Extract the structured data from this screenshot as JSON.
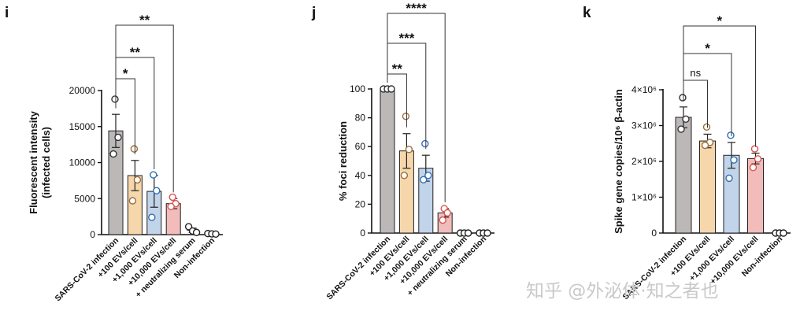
{
  "chart_data": [
    {
      "panel": "i",
      "type": "bar",
      "ylabel": [
        "Fluorescent intensity",
        "(infected cells)"
      ],
      "ylim": [
        0,
        20000
      ],
      "yticks": [
        0,
        5000,
        10000,
        15000,
        20000
      ],
      "ytick_labels": [
        "0",
        "5000",
        "10000",
        "15000",
        "20000"
      ],
      "categories": [
        "SARS-CoV-2 infection",
        "+100 EVs/cell",
        "+1,000 EVs/cell",
        "+10,000 EVs/cell",
        "+ neutralizing serum",
        "Non-infection"
      ],
      "colors": [
        "#bcb8b8",
        "#f5d7ab",
        "#c2d4ea",
        "#f1bcb9"
      ],
      "point_colors": [
        "#333333",
        "#9c6d3c",
        "#2f6fb6",
        "#d9534f",
        "#222222",
        "#222222"
      ],
      "values": [
        14400,
        8200,
        6000,
        4300,
        600,
        100
      ],
      "errors": [
        2300,
        2100,
        2200,
        700,
        300,
        80
      ],
      "points": [
        [
          18800,
          13500,
          11200
        ],
        [
          11900,
          7600,
          4700
        ],
        [
          8300,
          6100,
          2400
        ],
        [
          5200,
          4300,
          3900
        ],
        [
          1100,
          500,
          300
        ],
        [
          150,
          100,
          80
        ]
      ],
      "significance": [
        {
          "from": 0,
          "to": 1,
          "label": "*"
        },
        {
          "from": 0,
          "to": 2,
          "label": "**"
        },
        {
          "from": 0,
          "to": 3,
          "label": "**"
        }
      ]
    },
    {
      "panel": "j",
      "type": "bar",
      "ylabel": [
        "% foci reduction"
      ],
      "ylim": [
        0,
        100
      ],
      "yticks": [
        0,
        20,
        40,
        60,
        80,
        100
      ],
      "ytick_labels": [
        "0",
        "20",
        "40",
        "60",
        "80",
        "100"
      ],
      "categories": [
        "SARS-CoV-2 infection",
        "+100 EVs/cell",
        "+1,000 EVs/cell",
        "+10,000 EVs/cell",
        "+ neutralizing serum",
        "Non-infection"
      ],
      "colors": [
        "#bcb8b8",
        "#f5d7ab",
        "#c2d4ea",
        "#f1bcb9"
      ],
      "point_colors": [
        "#333333",
        "#9c6d3c",
        "#2f6fb6",
        "#d9534f",
        "#222222",
        "#222222"
      ],
      "values": [
        100,
        57,
        45,
        14,
        0,
        0
      ],
      "errors": [
        0,
        12,
        9,
        3,
        0,
        0
      ],
      "points": [
        [
          100,
          100,
          100
        ],
        [
          81,
          58,
          40
        ],
        [
          62,
          40,
          37
        ],
        [
          17,
          14,
          9
        ],
        [
          0,
          0,
          0
        ],
        [
          0,
          0,
          0
        ]
      ],
      "significance": [
        {
          "from": 0,
          "to": 1,
          "label": "**"
        },
        {
          "from": 0,
          "to": 2,
          "label": "***"
        },
        {
          "from": 0,
          "to": 3,
          "label": "****"
        }
      ]
    },
    {
      "panel": "k",
      "type": "bar",
      "ylabel": [
        "Spike gene copies/10⁶ β-actin"
      ],
      "ylim": [
        0,
        4000000
      ],
      "yticks": [
        0,
        1000000,
        2000000,
        3000000,
        4000000
      ],
      "ytick_labels": [
        "0",
        "1×10⁶",
        "2×10⁶",
        "3×10⁶",
        "4×10⁶"
      ],
      "categories": [
        "SARS-CoV-2 infection",
        "+100 EVs/cell",
        "+1,000 EVs/cell",
        "+10,000 EVs/cell",
        "Non-infection"
      ],
      "colors": [
        "#bcb8b8",
        "#f5d7ab",
        "#c2d4ea",
        "#f1bcb9"
      ],
      "point_colors": [
        "#333333",
        "#9c6d3c",
        "#2f6fb6",
        "#d9534f",
        "#222222"
      ],
      "values": [
        3230000,
        2570000,
        2170000,
        2080000,
        0
      ],
      "errors": [
        290000,
        190000,
        360000,
        150000,
        0
      ],
      "points": [
        [
          3780000,
          3180000,
          2900000
        ],
        [
          2960000,
          2530000,
          2450000
        ],
        [
          2730000,
          2040000,
          1530000
        ],
        [
          2350000,
          2070000,
          1830000
        ],
        [
          0,
          0,
          0
        ]
      ],
      "significance": [
        {
          "from": 0,
          "to": 1,
          "label": "ns"
        },
        {
          "from": 0,
          "to": 2,
          "label": "*"
        },
        {
          "from": 0,
          "to": 3,
          "label": "*"
        }
      ]
    }
  ],
  "watermark": "知乎 @外泌体·知之者也"
}
